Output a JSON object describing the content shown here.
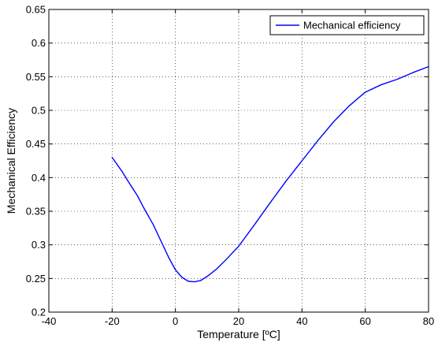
{
  "chart_data": {
    "type": "line",
    "title": "",
    "xlabel": "Temperature [ºC]",
    "ylabel": "Mechanical Efficiency",
    "xlim": [
      -40,
      80
    ],
    "ylim": [
      0.2,
      0.65
    ],
    "xticks": [
      -40,
      -20,
      0,
      20,
      40,
      60,
      80
    ],
    "yticks": [
      0.2,
      0.25,
      0.3,
      0.35,
      0.4,
      0.45,
      0.5,
      0.55,
      0.6,
      0.65
    ],
    "ytick_labels": [
      "0.2",
      "0.25",
      "0.3",
      "0.35",
      "0.4",
      "0.45",
      "0.5",
      "0.55",
      "0.6",
      "0.65"
    ],
    "grid": true,
    "legend_position": "top-right",
    "series": [
      {
        "name": "Mechanical efficiency",
        "color": "#0000ff",
        "x": [
          -20,
          -17,
          -15,
          -12,
          -10,
          -7,
          -5,
          -2,
          0,
          2,
          4,
          6,
          8,
          10,
          13,
          16,
          20,
          25,
          30,
          35,
          40,
          45,
          50,
          55,
          60,
          65,
          70,
          75,
          80
        ],
        "y": [
          0.43,
          0.41,
          0.395,
          0.373,
          0.355,
          0.33,
          0.31,
          0.28,
          0.263,
          0.252,
          0.246,
          0.245,
          0.247,
          0.253,
          0.264,
          0.278,
          0.298,
          0.33,
          0.363,
          0.395,
          0.425,
          0.455,
          0.483,
          0.507,
          0.527,
          0.538,
          0.546,
          0.556,
          0.565
        ]
      }
    ]
  }
}
